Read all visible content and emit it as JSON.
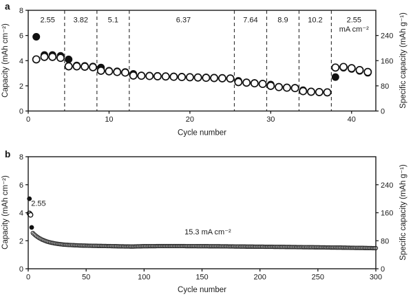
{
  "panels": {
    "a": {
      "letter": "a",
      "xlabel": "Cycle number",
      "ylabel_left": "Capacity (mAh cm⁻²)",
      "ylabel_right": "Specific capacity (mAh g⁻¹)"
    },
    "b": {
      "letter": "b",
      "xlabel": "Cycle number",
      "ylabel_left": "Capacity (mAh cm⁻²)",
      "ylabel_right": "Specific capacity (mAh g⁻¹)"
    }
  },
  "colors": {
    "background": "#ffffff",
    "axis": "#1a1a1a",
    "dashed_line": "#3a3a3a",
    "marker_filled": "#111111",
    "marker_open_fill": "#ffffff",
    "marker_stroke": "#111111",
    "band_fill": "#e0e0e0"
  },
  "chart_data": [
    {
      "panel": "a",
      "type": "scatter",
      "xlabel": "Cycle number",
      "ylabel_left": "Capacity (mAh cm⁻²)",
      "ylabel_right": "Specific capacity (mAh g⁻¹)",
      "xlim": [
        0,
        43
      ],
      "ylim_left": [
        0,
        8
      ],
      "ylim_right": [
        0,
        320
      ],
      "xticks": [
        0,
        10,
        20,
        30,
        40
      ],
      "yticks_left": [
        0,
        2,
        4,
        6,
        8
      ],
      "yticks_right": [
        0,
        80,
        160,
        240
      ],
      "right_to_left_scale": 40,
      "grid": false,
      "dashed_boundaries": [
        4.5,
        8.5,
        12.5,
        25.5,
        29.5,
        33.5,
        37.5
      ],
      "rate_labels": [
        {
          "text": "2.55",
          "x": 2.4,
          "y": 7.05
        },
        {
          "text": "3.82",
          "x": 6.5,
          "y": 7.05
        },
        {
          "text": "5.1",
          "x": 10.5,
          "y": 7.05
        },
        {
          "text": "6.37",
          "x": 19.2,
          "y": 7.05
        },
        {
          "text": "7.64",
          "x": 27.5,
          "y": 7.05
        },
        {
          "text": "8.9",
          "x": 31.5,
          "y": 7.05
        },
        {
          "text": "10.2",
          "x": 35.5,
          "y": 7.05
        },
        {
          "text": "2.55",
          "x": 40.3,
          "y": 7.05
        },
        {
          "text": "mA cm⁻²",
          "x": 40.3,
          "y": 6.3
        }
      ],
      "series": [
        {
          "name": "discharge-capacity",
          "marker": "filled-circle-lg",
          "x_start": 1,
          "values": [
            5.9,
            4.45,
            4.45,
            4.38,
            4.1,
            3.62,
            3.58,
            3.54,
            3.45,
            3.2,
            3.15,
            3.1,
            2.95,
            2.83,
            2.81,
            2.79,
            2.77,
            2.75,
            2.73,
            2.71,
            2.69,
            2.67,
            2.65,
            2.63,
            2.61,
            2.4,
            2.28,
            2.22,
            2.17,
            2.1,
            1.92,
            1.87,
            1.84,
            1.65,
            1.55,
            1.52,
            1.5,
            2.7,
            3.44,
            3.34,
            3.19,
            3.04
          ]
        },
        {
          "name": "charge-capacity",
          "marker": "open-circle-lg",
          "x_start": 1,
          "values": [
            4.1,
            4.3,
            4.3,
            4.22,
            3.55,
            3.55,
            3.52,
            3.48,
            3.2,
            3.15,
            3.1,
            3.05,
            2.82,
            2.8,
            2.78,
            2.76,
            2.74,
            2.72,
            2.7,
            2.68,
            2.66,
            2.64,
            2.62,
            2.6,
            2.58,
            2.3,
            2.25,
            2.2,
            2.15,
            2.0,
            1.9,
            1.85,
            1.82,
            1.58,
            1.53,
            1.5,
            1.48,
            3.45,
            3.5,
            3.4,
            3.25,
            3.1
          ]
        }
      ]
    },
    {
      "panel": "b",
      "type": "scatter",
      "xlabel": "Cycle number",
      "ylabel_left": "Capacity (mAh cm⁻²)",
      "ylabel_right": "Specific capacity (mAh g⁻¹)",
      "xlim": [
        0,
        300
      ],
      "ylim_left": [
        0,
        8
      ],
      "ylim_right": [
        0,
        320
      ],
      "xticks": [
        0,
        50,
        100,
        150,
        200,
        250,
        300
      ],
      "yticks_left": [
        0,
        2,
        4,
        6,
        8
      ],
      "yticks_right": [
        0,
        80,
        160,
        240
      ],
      "right_to_left_scale": 40,
      "grid": false,
      "annotations": [
        {
          "text": "2.55",
          "x": 2.5,
          "y": 4.5,
          "anchor": "start"
        },
        {
          "text": "15.3 mA cm⁻²",
          "x": 155,
          "y": 2.45,
          "anchor": "middle"
        }
      ],
      "series": [
        {
          "name": "long-cycling",
          "marker": "band-circle",
          "x_start": 4,
          "x_end": 300,
          "anchors": [
            [
              4,
              2.55
            ],
            [
              5,
              2.47
            ],
            [
              6,
              2.4
            ],
            [
              7,
              2.33
            ],
            [
              8,
              2.27
            ],
            [
              10,
              2.17
            ],
            [
              12,
              2.08
            ],
            [
              14,
              2.01
            ],
            [
              16,
              1.95
            ],
            [
              18,
              1.9
            ],
            [
              20,
              1.86
            ],
            [
              23,
              1.81
            ],
            [
              26,
              1.77
            ],
            [
              30,
              1.73
            ],
            [
              35,
              1.7
            ],
            [
              40,
              1.68
            ],
            [
              45,
              1.66
            ],
            [
              50,
              1.65
            ],
            [
              60,
              1.63
            ],
            [
              70,
              1.62
            ],
            [
              80,
              1.6
            ],
            [
              90,
              1.59
            ],
            [
              100,
              1.61
            ],
            [
              115,
              1.62
            ],
            [
              130,
              1.62
            ],
            [
              150,
              1.61
            ],
            [
              170,
              1.6
            ],
            [
              190,
              1.58
            ],
            [
              210,
              1.57
            ],
            [
              230,
              1.55
            ],
            [
              250,
              1.53
            ],
            [
              270,
              1.51
            ],
            [
              285,
              1.49
            ],
            [
              300,
              1.47
            ]
          ]
        },
        {
          "name": "initial-discharge",
          "marker": "filled-circle-sm",
          "points": [
            [
              1,
              5.0
            ],
            [
              2,
              3.9
            ],
            [
              3,
              2.95
            ]
          ]
        },
        {
          "name": "initial-charge",
          "marker": "open-circle-sm",
          "points": [
            [
              1,
              3.95
            ],
            [
              2,
              3.85
            ]
          ]
        }
      ]
    }
  ]
}
